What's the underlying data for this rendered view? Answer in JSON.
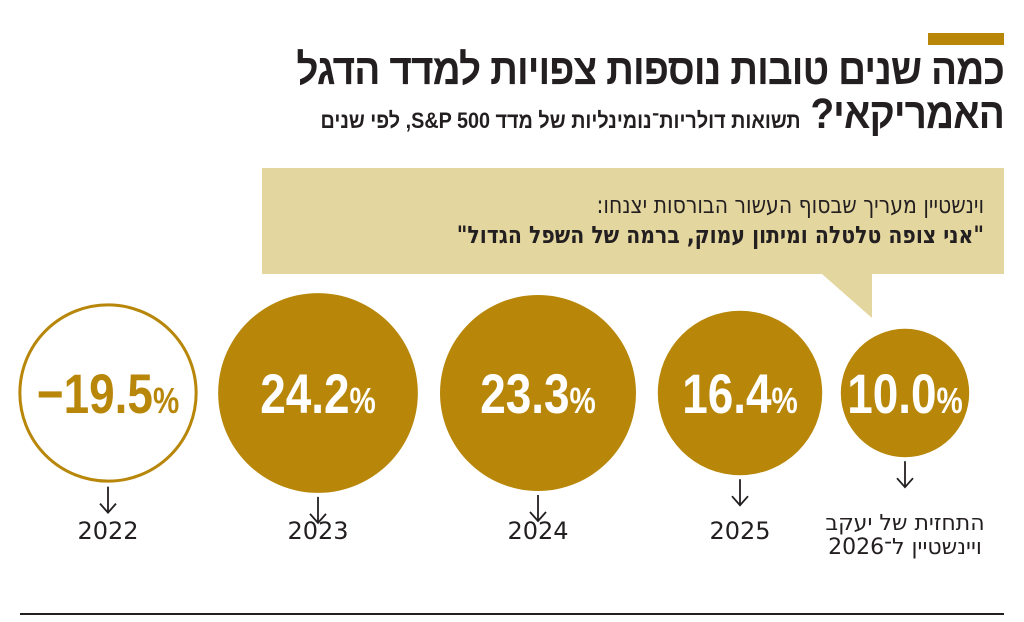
{
  "header": {
    "title": "כמה שנים טובות נוספות צפויות למדד הדגל האמריקאי?",
    "subtitle": "תשואות דולריות־נומינליות של מדד S&P 500, לפי שנים"
  },
  "quote": {
    "intro": "וינשטיין מעריך שבסוף העשור הבורסות יצנחו:",
    "text": "\"אני צופה טלטלה ומיתון עמוק, ברמה של השפל הגדול\""
  },
  "colors": {
    "accent": "#b8870a",
    "bubble": "#e3d69f",
    "text": "#231f20"
  },
  "chart_data": {
    "type": "bubble",
    "unit": "%",
    "categories": [
      "2022",
      "2023",
      "2024",
      "2025",
      "התחזית של יעקב ויינשטיין ל־2026"
    ],
    "labels": [
      "−19.5%",
      "24.2%",
      "23.3%",
      "16.4%",
      "10.0%"
    ],
    "values": [
      -19.5,
      24.2,
      23.3,
      16.4,
      10.0
    ],
    "negative_style": "outline"
  }
}
